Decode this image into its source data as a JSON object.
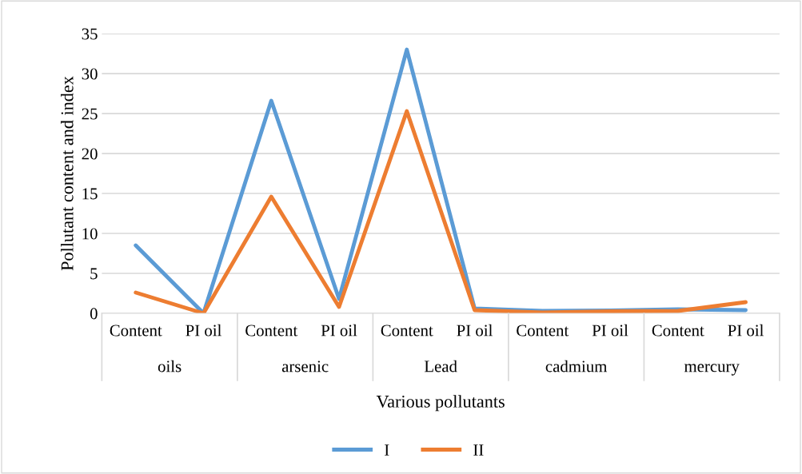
{
  "chart_data": {
    "type": "line",
    "xlabel": "Various pollutants",
    "ylabel": "Pollutant content and index",
    "categories": [
      "Content",
      "PI oil",
      "Content",
      "PI oil",
      "Content",
      "PI oil",
      "Content",
      "PI oil",
      "Content",
      "PI oil"
    ],
    "series": [
      {
        "name": "I",
        "color": "#5b9bd5",
        "values": [
          8.5,
          0,
          26.6,
          1.8,
          33,
          0.6,
          0.3,
          0.35,
          0.5,
          0.4
        ]
      },
      {
        "name": "II",
        "color": "#ed7d31",
        "values": [
          2.6,
          0,
          14.6,
          0.8,
          25.3,
          0.4,
          0.1,
          0.25,
          0.3,
          1.4
        ]
      }
    ],
    "annotations": [
      "oils",
      "arsenic",
      "Lead",
      "cadmium",
      "mercury"
    ],
    "ylim": [
      0,
      35
    ],
    "yticks": [
      0,
      5,
      10,
      15,
      20,
      25,
      30,
      35
    ],
    "grid": "y",
    "legend": "bottom",
    "marker": "none",
    "line_style": "solid"
  }
}
